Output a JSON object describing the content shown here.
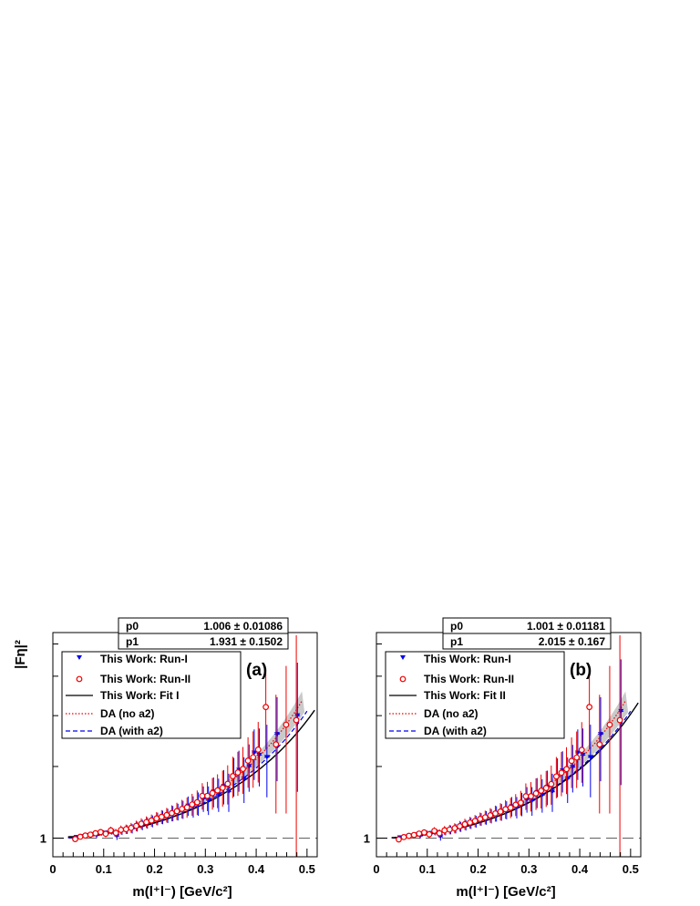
{
  "chart_data": [
    {
      "type": "scatter",
      "panel_label": "(a)",
      "xlabel": "m(l⁺l⁻) [GeV/c²]",
      "ylabel": "|Fη|²",
      "xlim": [
        0,
        0.52
      ],
      "ylim": [
        0.9,
        3.2
      ],
      "log_y": true,
      "x_ticks": [
        "0",
        "0.1",
        "0.2",
        "0.3",
        "0.4",
        "0.5"
      ],
      "y_ticks": [
        "1"
      ],
      "stats": [
        {
          "name": "p0",
          "value": "1.006 ± 0.01086"
        },
        {
          "name": "p1",
          "value": "1.931 ± 0.1502"
        }
      ],
      "legend": [
        {
          "label": "This Work: Run-I",
          "style": "blue-triangle"
        },
        {
          "label": "This Work: Run-II",
          "style": "red-circle"
        },
        {
          "label": "This Work: Fit I",
          "style": "black-line"
        },
        {
          "label": "DA (no a2)",
          "style": "red-dotted"
        },
        {
          "label": "DA (with a2)",
          "style": "blue-dashed"
        }
      ],
      "fit": {
        "p0": 1.006,
        "p1": 1.931
      },
      "series": [
        {
          "name": "This Work: Run-I",
          "color": "#0000ee",
          "marker": "triangle",
          "points": [
            [
              0.045,
              1.005,
              0.01
            ],
            [
              0.055,
              1.01,
              0.012
            ],
            [
              0.065,
              1.016,
              0.013
            ],
            [
              0.075,
              1.022,
              0.014
            ],
            [
              0.085,
              1.015,
              0.015
            ],
            [
              0.095,
              1.032,
              0.017
            ],
            [
              0.105,
              1.028,
              0.018
            ],
            [
              0.115,
              1.04,
              0.02
            ],
            [
              0.125,
              1.012,
              0.022
            ],
            [
              0.135,
              1.042,
              0.024
            ],
            [
              0.145,
              1.05,
              0.026
            ],
            [
              0.155,
              1.055,
              0.028
            ],
            [
              0.165,
              1.068,
              0.03
            ],
            [
              0.175,
              1.078,
              0.032
            ],
            [
              0.185,
              1.09,
              0.035
            ],
            [
              0.195,
              1.1,
              0.037
            ],
            [
              0.205,
              1.115,
              0.04
            ],
            [
              0.215,
              1.125,
              0.043
            ],
            [
              0.225,
              1.135,
              0.046
            ],
            [
              0.235,
              1.15,
              0.05
            ],
            [
              0.245,
              1.16,
              0.055
            ],
            [
              0.255,
              1.175,
              0.06
            ],
            [
              0.265,
              1.2,
              0.066
            ],
            [
              0.275,
              1.195,
              0.072
            ],
            [
              0.285,
              1.215,
              0.08
            ],
            [
              0.295,
              1.25,
              0.09
            ],
            [
              0.305,
              1.24,
              0.1
            ],
            [
              0.315,
              1.3,
              0.11
            ],
            [
              0.325,
              1.28,
              0.12
            ],
            [
              0.335,
              1.34,
              0.13
            ],
            [
              0.345,
              1.3,
              0.14
            ],
            [
              0.355,
              1.42,
              0.155
            ],
            [
              0.365,
              1.47,
              0.17
            ],
            [
              0.375,
              1.4,
              0.18
            ],
            [
              0.385,
              1.5,
              0.2
            ],
            [
              0.395,
              1.62,
              0.23
            ],
            [
              0.405,
              1.6,
              0.26
            ],
            [
              0.42,
              1.58,
              0.32
            ],
            [
              0.44,
              1.8,
              0.42
            ],
            [
              0.48,
              2.0,
              0.7
            ]
          ]
        },
        {
          "name": "This Work: Run-II",
          "color": "#ee0000",
          "marker": "circle",
          "points": [
            [
              0.045,
              0.995,
              0.012
            ],
            [
              0.055,
              1.008,
              0.013
            ],
            [
              0.065,
              1.015,
              0.014
            ],
            [
              0.075,
              1.02,
              0.016
            ],
            [
              0.085,
              1.028,
              0.017
            ],
            [
              0.095,
              1.035,
              0.018
            ],
            [
              0.105,
              1.025,
              0.02
            ],
            [
              0.115,
              1.045,
              0.022
            ],
            [
              0.125,
              1.03,
              0.024
            ],
            [
              0.135,
              1.048,
              0.026
            ],
            [
              0.145,
              1.052,
              0.028
            ],
            [
              0.155,
              1.06,
              0.03
            ],
            [
              0.165,
              1.072,
              0.032
            ],
            [
              0.175,
              1.085,
              0.034
            ],
            [
              0.185,
              1.095,
              0.036
            ],
            [
              0.195,
              1.105,
              0.038
            ],
            [
              0.205,
              1.118,
              0.041
            ],
            [
              0.215,
              1.128,
              0.044
            ],
            [
              0.225,
              1.14,
              0.047
            ],
            [
              0.235,
              1.152,
              0.052
            ],
            [
              0.245,
              1.165,
              0.057
            ],
            [
              0.255,
              1.18,
              0.062
            ],
            [
              0.265,
              1.19,
              0.068
            ],
            [
              0.275,
              1.21,
              0.075
            ],
            [
              0.285,
              1.225,
              0.085
            ],
            [
              0.295,
              1.27,
              0.095
            ],
            [
              0.305,
              1.27,
              0.105
            ],
            [
              0.315,
              1.29,
              0.115
            ],
            [
              0.325,
              1.31,
              0.125
            ],
            [
              0.335,
              1.33,
              0.135
            ],
            [
              0.345,
              1.36,
              0.15
            ],
            [
              0.355,
              1.42,
              0.165
            ],
            [
              0.365,
              1.45,
              0.18
            ],
            [
              0.375,
              1.48,
              0.195
            ],
            [
              0.385,
              1.55,
              0.22
            ],
            [
              0.395,
              1.58,
              0.25
            ],
            [
              0.405,
              1.65,
              0.28
            ],
            [
              0.42,
              2.1,
              0.45
            ],
            [
              0.44,
              1.7,
              0.55
            ],
            [
              0.46,
              1.9,
              0.75
            ],
            [
              0.48,
              1.95,
              1.2
            ]
          ]
        }
      ]
    },
    {
      "type": "scatter",
      "panel_label": "(b)",
      "xlabel": "m(l⁺l⁻) [GeV/c²]",
      "ylabel": "",
      "xlim": [
        0,
        0.52
      ],
      "ylim": [
        0.9,
        3.2
      ],
      "log_y": true,
      "x_ticks": [
        "0",
        "0.1",
        "0.2",
        "0.3",
        "0.4",
        "0.5"
      ],
      "y_ticks": [
        "1"
      ],
      "stats": [
        {
          "name": "p0",
          "value": "1.001 ± 0.01181"
        },
        {
          "name": "p1",
          "value": "2.015 ± 0.167"
        }
      ],
      "legend": [
        {
          "label": "This Work: Run-I",
          "style": "blue-triangle"
        },
        {
          "label": "This Work: Run-II",
          "style": "red-circle"
        },
        {
          "label": "This Work: Fit II",
          "style": "black-line"
        },
        {
          "label": "DA (no a2)",
          "style": "red-dotted"
        },
        {
          "label": "DA (with a2)",
          "style": "blue-dashed"
        }
      ],
      "fit": {
        "p0": 1.001,
        "p1": 2.015
      },
      "series": [
        {
          "name": "This Work: Run-I",
          "color": "#0000ee",
          "marker": "triangle",
          "points": [
            [
              0.045,
              1.003,
              0.01
            ],
            [
              0.055,
              1.008,
              0.012
            ],
            [
              0.065,
              1.014,
              0.013
            ],
            [
              0.075,
              1.02,
              0.014
            ],
            [
              0.085,
              1.012,
              0.015
            ],
            [
              0.095,
              1.03,
              0.017
            ],
            [
              0.105,
              1.025,
              0.018
            ],
            [
              0.115,
              1.036,
              0.02
            ],
            [
              0.125,
              1.008,
              0.022
            ],
            [
              0.135,
              1.04,
              0.024
            ],
            [
              0.145,
              1.048,
              0.026
            ],
            [
              0.155,
              1.055,
              0.028
            ],
            [
              0.165,
              1.066,
              0.03
            ],
            [
              0.175,
              1.076,
              0.032
            ],
            [
              0.185,
              1.088,
              0.035
            ],
            [
              0.195,
              1.098,
              0.037
            ],
            [
              0.205,
              1.112,
              0.04
            ],
            [
              0.215,
              1.122,
              0.043
            ],
            [
              0.225,
              1.133,
              0.046
            ],
            [
              0.235,
              1.148,
              0.05
            ],
            [
              0.245,
              1.158,
              0.055
            ],
            [
              0.255,
              1.172,
              0.06
            ],
            [
              0.265,
              1.196,
              0.066
            ],
            [
              0.275,
              1.19,
              0.072
            ],
            [
              0.285,
              1.212,
              0.08
            ],
            [
              0.295,
              1.245,
              0.09
            ],
            [
              0.305,
              1.235,
              0.1
            ],
            [
              0.315,
              1.295,
              0.11
            ],
            [
              0.325,
              1.275,
              0.12
            ],
            [
              0.335,
              1.335,
              0.13
            ],
            [
              0.345,
              1.3,
              0.14
            ],
            [
              0.355,
              1.415,
              0.155
            ],
            [
              0.365,
              1.465,
              0.17
            ],
            [
              0.375,
              1.4,
              0.18
            ],
            [
              0.385,
              1.495,
              0.2
            ],
            [
              0.395,
              1.62,
              0.23
            ],
            [
              0.405,
              1.6,
              0.26
            ],
            [
              0.42,
              1.58,
              0.32
            ],
            [
              0.44,
              1.8,
              0.42
            ],
            [
              0.48,
              2.05,
              0.7
            ]
          ]
        },
        {
          "name": "This Work: Run-II",
          "color": "#ee0000",
          "marker": "circle",
          "points": [
            [
              0.045,
              0.993,
              0.012
            ],
            [
              0.055,
              1.006,
              0.013
            ],
            [
              0.065,
              1.013,
              0.014
            ],
            [
              0.075,
              1.018,
              0.016
            ],
            [
              0.085,
              1.026,
              0.017
            ],
            [
              0.095,
              1.033,
              0.018
            ],
            [
              0.105,
              1.022,
              0.02
            ],
            [
              0.115,
              1.042,
              0.022
            ],
            [
              0.125,
              1.028,
              0.024
            ],
            [
              0.135,
              1.045,
              0.026
            ],
            [
              0.145,
              1.05,
              0.028
            ],
            [
              0.155,
              1.058,
              0.03
            ],
            [
              0.165,
              1.07,
              0.032
            ],
            [
              0.175,
              1.082,
              0.034
            ],
            [
              0.185,
              1.092,
              0.036
            ],
            [
              0.195,
              1.102,
              0.038
            ],
            [
              0.205,
              1.115,
              0.041
            ],
            [
              0.215,
              1.125,
              0.044
            ],
            [
              0.225,
              1.138,
              0.047
            ],
            [
              0.235,
              1.15,
              0.052
            ],
            [
              0.245,
              1.162,
              0.057
            ],
            [
              0.255,
              1.178,
              0.062
            ],
            [
              0.265,
              1.188,
              0.068
            ],
            [
              0.275,
              1.208,
              0.075
            ],
            [
              0.285,
              1.222,
              0.085
            ],
            [
              0.295,
              1.268,
              0.095
            ],
            [
              0.305,
              1.268,
              0.105
            ],
            [
              0.315,
              1.288,
              0.115
            ],
            [
              0.325,
              1.308,
              0.125
            ],
            [
              0.335,
              1.328,
              0.135
            ],
            [
              0.345,
              1.358,
              0.15
            ],
            [
              0.355,
              1.418,
              0.165
            ],
            [
              0.365,
              1.448,
              0.18
            ],
            [
              0.375,
              1.478,
              0.195
            ],
            [
              0.385,
              1.548,
              0.22
            ],
            [
              0.395,
              1.578,
              0.25
            ],
            [
              0.405,
              1.648,
              0.28
            ],
            [
              0.42,
              2.1,
              0.45
            ],
            [
              0.44,
              1.7,
              0.55
            ],
            [
              0.46,
              1.9,
              0.75
            ],
            [
              0.48,
              1.95,
              1.2
            ]
          ]
        }
      ]
    }
  ]
}
